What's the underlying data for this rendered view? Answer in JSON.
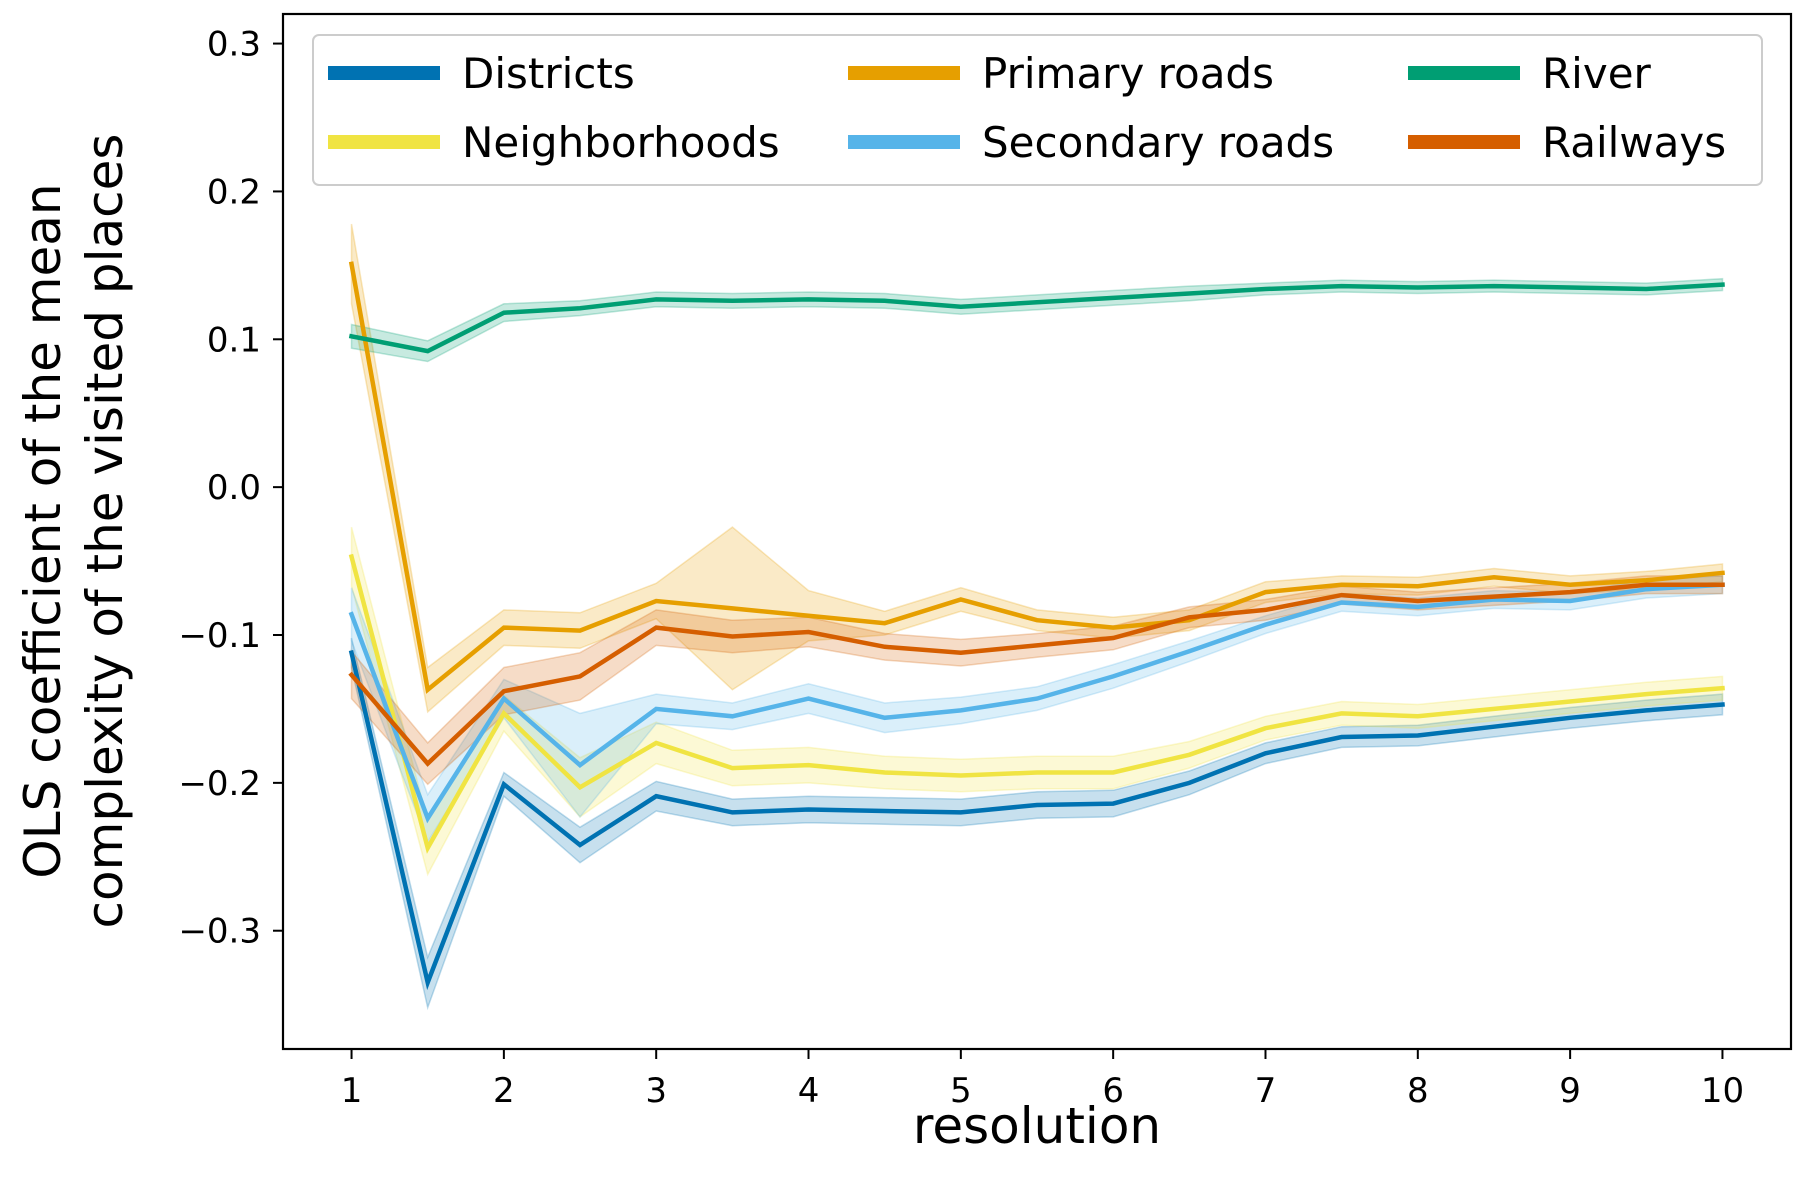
{
  "chart_data": {
    "type": "line",
    "xlabel": "resolution",
    "ylabel_line1": "OLS coefficient of the mean",
    "ylabel_line2": "complexity of the visited places",
    "xlim": [
      0.55,
      10.45
    ],
    "ylim": [
      -0.38,
      0.32
    ],
    "x_ticks": [
      1,
      2,
      3,
      4,
      5,
      6,
      7,
      8,
      9,
      10
    ],
    "x_tick_labels": [
      "1",
      "2",
      "3",
      "4",
      "5",
      "6",
      "7",
      "8",
      "9",
      "10"
    ],
    "y_ticks": [
      -0.3,
      -0.2,
      -0.1,
      0.0,
      0.1,
      0.2,
      0.3
    ],
    "y_tick_labels": [
      "−0.3",
      "−0.2",
      "−0.1",
      "0.0",
      "0.1",
      "0.2",
      "0.3"
    ],
    "grid": false,
    "legend_position": "top",
    "legend_columns": 3,
    "x": [
      1,
      1.5,
      2,
      2.5,
      3,
      3.5,
      4,
      4.5,
      5,
      5.5,
      6,
      6.5,
      7,
      7.5,
      8,
      8.5,
      9,
      9.5,
      10
    ],
    "series": [
      {
        "name": "Districts",
        "color": "#0072b2",
        "values": [
          -0.112,
          -0.335,
          -0.201,
          -0.242,
          -0.209,
          -0.22,
          -0.218,
          -0.219,
          -0.22,
          -0.215,
          -0.214,
          -0.2,
          -0.18,
          -0.169,
          -0.168,
          -0.162,
          -0.156,
          -0.151,
          -0.147
        ],
        "band": [
          0.01,
          0.017,
          0.008,
          0.012,
          0.01,
          0.009,
          0.009,
          0.009,
          0.009,
          0.009,
          0.009,
          0.008,
          0.007,
          0.007,
          0.007,
          0.007,
          0.007,
          0.007,
          0.007
        ]
      },
      {
        "name": "Neighborhoods",
        "color": "#f0e442",
        "values": [
          -0.047,
          -0.244,
          -0.153,
          -0.203,
          -0.173,
          -0.19,
          -0.188,
          -0.193,
          -0.195,
          -0.193,
          -0.193,
          -0.181,
          -0.163,
          -0.153,
          -0.155,
          -0.15,
          -0.145,
          -0.14,
          -0.136
        ],
        "band": [
          0.02,
          0.018,
          0.012,
          0.02,
          0.014,
          0.012,
          0.012,
          0.011,
          0.011,
          0.011,
          0.011,
          0.009,
          0.008,
          0.008,
          0.008,
          0.008,
          0.008,
          0.008,
          0.008
        ]
      },
      {
        "name": "Primary roads",
        "color": "#e69f00",
        "values": [
          0.151,
          -0.137,
          -0.095,
          -0.097,
          -0.077,
          -0.082,
          -0.087,
          -0.092,
          -0.076,
          -0.09,
          -0.095,
          -0.09,
          -0.071,
          -0.066,
          -0.067,
          -0.061,
          -0.066,
          -0.063,
          -0.058
        ],
        "band": [
          0.027,
          0.015,
          0.012,
          0.012,
          0.012,
          0.055,
          0.017,
          0.008,
          0.008,
          0.007,
          0.007,
          0.007,
          0.007,
          0.006,
          0.006,
          0.006,
          0.006,
          0.006,
          0.006
        ]
      },
      {
        "name": "Secondary roads",
        "color": "#56b4e9",
        "values": [
          -0.086,
          -0.224,
          -0.143,
          -0.188,
          -0.15,
          -0.155,
          -0.143,
          -0.156,
          -0.151,
          -0.143,
          -0.128,
          -0.111,
          -0.093,
          -0.078,
          -0.081,
          -0.076,
          -0.077,
          -0.069,
          -0.066
        ],
        "band": [
          0.018,
          0.016,
          0.013,
          0.035,
          0.01,
          0.009,
          0.01,
          0.01,
          0.009,
          0.008,
          0.008,
          0.007,
          0.006,
          0.006,
          0.006,
          0.006,
          0.006,
          0.006,
          0.006
        ]
      },
      {
        "name": "River",
        "color": "#009e73",
        "values": [
          0.102,
          0.092,
          0.118,
          0.121,
          0.127,
          0.126,
          0.127,
          0.126,
          0.122,
          0.125,
          0.128,
          0.131,
          0.134,
          0.136,
          0.135,
          0.136,
          0.135,
          0.134,
          0.137
        ],
        "band": [
          0.008,
          0.007,
          0.006,
          0.005,
          0.005,
          0.005,
          0.005,
          0.005,
          0.005,
          0.005,
          0.005,
          0.005,
          0.004,
          0.004,
          0.004,
          0.004,
          0.004,
          0.004,
          0.004
        ]
      },
      {
        "name": "Railways",
        "color": "#d55e00",
        "values": [
          -0.127,
          -0.187,
          -0.138,
          -0.128,
          -0.095,
          -0.101,
          -0.098,
          -0.108,
          -0.112,
          -0.107,
          -0.102,
          -0.088,
          -0.083,
          -0.073,
          -0.077,
          -0.074,
          -0.071,
          -0.066,
          -0.066
        ],
        "band": [
          0.016,
          0.014,
          0.016,
          0.016,
          0.012,
          0.011,
          0.01,
          0.009,
          0.009,
          0.008,
          0.008,
          0.007,
          0.007,
          0.006,
          0.006,
          0.006,
          0.006,
          0.006,
          0.006
        ]
      }
    ]
  }
}
